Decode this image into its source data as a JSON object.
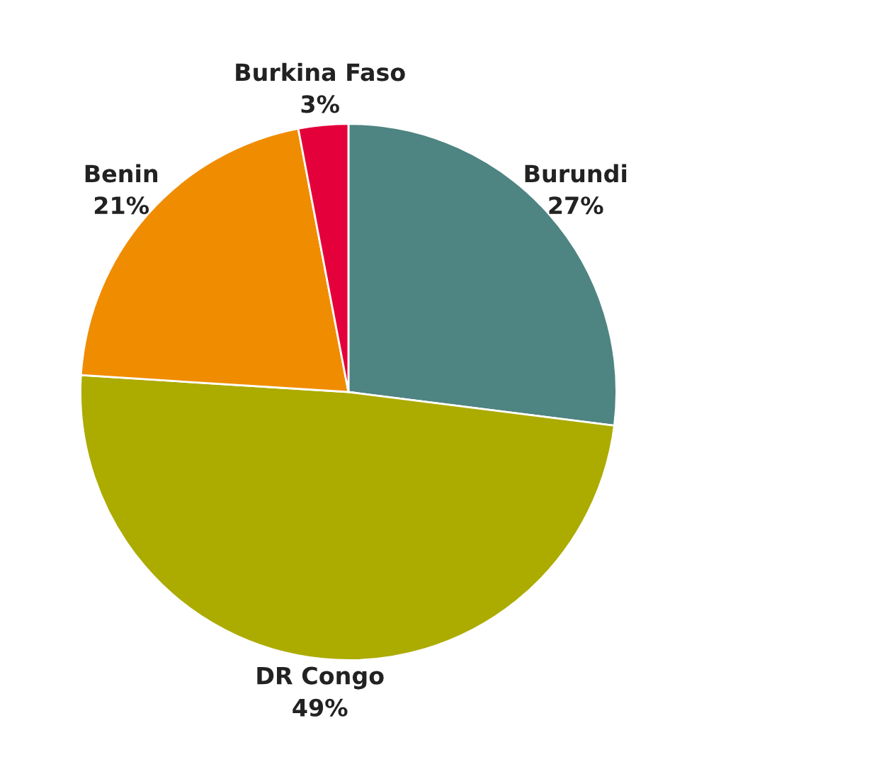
{
  "chart_data": {
    "type": "pie",
    "categories": [
      "Burundi",
      "DR Congo",
      "Benin",
      "Burkina Faso"
    ],
    "values": [
      27,
      49,
      21,
      3
    ],
    "colors": [
      "#4e8482",
      "#acab00",
      "#f08c00",
      "#e4003a"
    ],
    "value_labels": [
      "27%",
      "49%",
      "21%",
      "3%"
    ]
  }
}
